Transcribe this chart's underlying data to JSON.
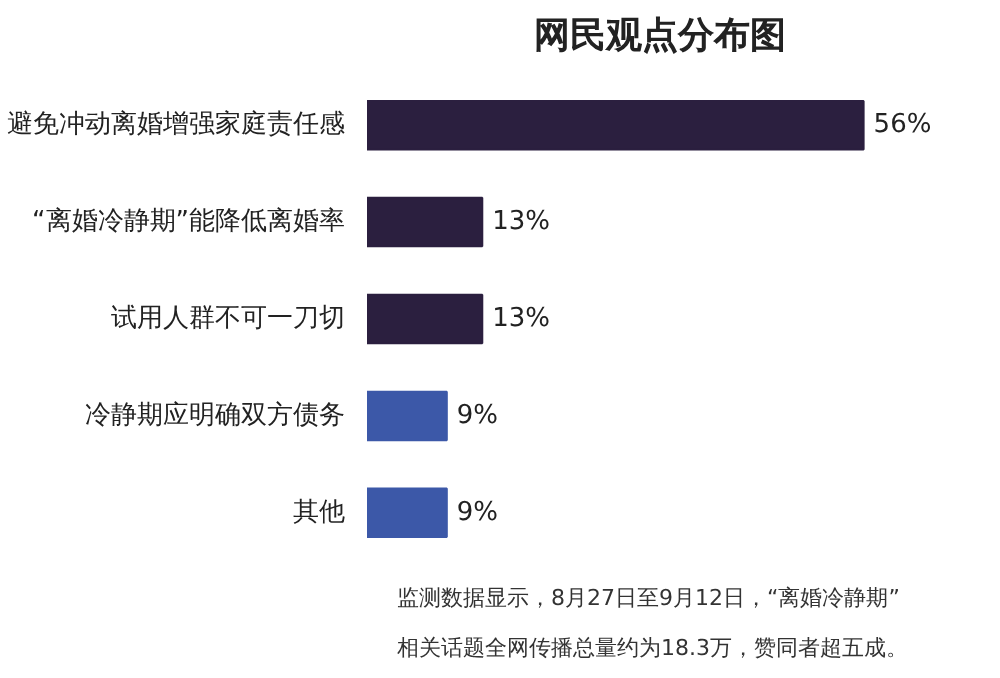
{
  "chart_data": {
    "type": "bar",
    "orientation": "horizontal",
    "title": "网民观点分布图",
    "categories": [
      "避免冲动离婚增强家庭责任感",
      "“离婚冷静期”能降低离婚率",
      "试用人群不可一刀切",
      "冷静期应明确双方债务",
      "其他"
    ],
    "values": [
      56,
      13,
      13,
      9,
      9
    ],
    "colors": [
      "#2b1f3f",
      "#2b1f3f",
      "#2b1f3f",
      "#3c58a8",
      "#3c58a8"
    ],
    "value_labels": [
      "56%",
      "13%",
      "13%",
      "9%",
      "9%"
    ],
    "grid": false,
    "annotations": [
      "监测数据显示，8月27日至9月12日，“离婚冷静期”相关话题全网传播总量约为18.3万，赞同者超五成。"
    ]
  }
}
